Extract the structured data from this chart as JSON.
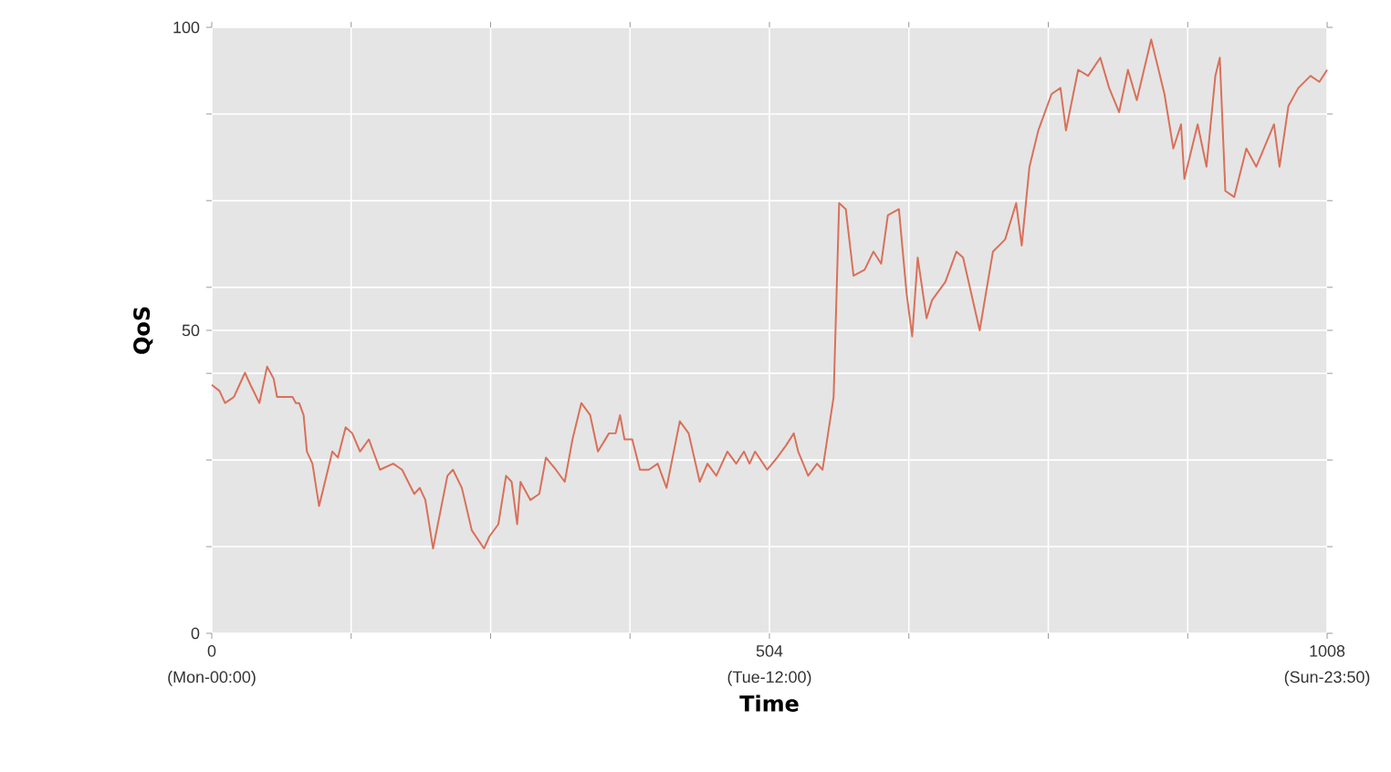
{
  "chart_data": {
    "type": "line",
    "xlabel": "Time",
    "ylabel": "QoS",
    "x": [
      0,
      7,
      12,
      20,
      30,
      35,
      43,
      50,
      56,
      59,
      73,
      76,
      79,
      83,
      86,
      91,
      97,
      109,
      114,
      121,
      127,
      134,
      142,
      152,
      164,
      172,
      183,
      188,
      193,
      200,
      213,
      218,
      226,
      235,
      246,
      251,
      259,
      266,
      271,
      276,
      279,
      288,
      296,
      302,
      311,
      319,
      326,
      334,
      342,
      349,
      359,
      365,
      369,
      373,
      380,
      387,
      395,
      403,
      411,
      423,
      431,
      436,
      441,
      448,
      456,
      466,
      474,
      481,
      486,
      491,
      502,
      511,
      519,
      526,
      530,
      539,
      547,
      552,
      562,
      567,
      573,
      580,
      590,
      598,
      605,
      611,
      621,
      628,
      633,
      638,
      646,
      651,
      663,
      673,
      679,
      684,
      694,
      706,
      717,
      727,
      732,
      739,
      747,
      759,
      767,
      772,
      783,
      792,
      803,
      811,
      820,
      828,
      836,
      849,
      861,
      869,
      876,
      879,
      891,
      899,
      907,
      911,
      916,
      924,
      935,
      944,
      960,
      965,
      973,
      982,
      993,
      1001,
      1008
    ],
    "series": [
      {
        "color": "#d9705a",
        "values": [
          41,
          40,
          38,
          39,
          43,
          41,
          38,
          44,
          42,
          39,
          39,
          38,
          38,
          36,
          30,
          28,
          21,
          30,
          29,
          34,
          33,
          30,
          32,
          27,
          28,
          27,
          23,
          24,
          22,
          14,
          26,
          27,
          24,
          17,
          14,
          16,
          18,
          26,
          25,
          18,
          25,
          22,
          23,
          29,
          27,
          25,
          32,
          38,
          36,
          30,
          33,
          33,
          36,
          32,
          32,
          27,
          27,
          28,
          24,
          35,
          33,
          29,
          25,
          28,
          26,
          30,
          28,
          30,
          28,
          30,
          27,
          29,
          31,
          33,
          30,
          26,
          28,
          27,
          39,
          71,
          70,
          59,
          60,
          63,
          61,
          69,
          70,
          56,
          49,
          62,
          52,
          55,
          58,
          63,
          62,
          58,
          50,
          63,
          65,
          71,
          64,
          77,
          83,
          89,
          90,
          83,
          93,
          92,
          95,
          90,
          86,
          93,
          88,
          98,
          89,
          80,
          84,
          75,
          84,
          77,
          92,
          95,
          73,
          72,
          80,
          77,
          84,
          77,
          87,
          90,
          92,
          91,
          93
        ]
      }
    ],
    "xlim": [
      0,
      1008
    ],
    "ylim": [
      0,
      100
    ],
    "xticks": [
      0,
      {
        "value": 126,
        "label": null
      },
      {
        "value": 252,
        "label": null
      },
      {
        "value": 378,
        "label": null
      },
      504,
      {
        "value": 630,
        "label": null
      },
      {
        "value": 756,
        "label": null
      },
      {
        "value": 882,
        "label": null
      },
      1008
    ],
    "annotations": [
      "(Mon-00:00)",
      "(Tue-12:00)",
      "(Sun-23:50)"
    ],
    "yticks": [
      0,
      {
        "value": 14.3,
        "label": null
      },
      {
        "value": 28.6,
        "label": null
      },
      {
        "value": 42.9,
        "label": null
      },
      50,
      {
        "value": 57.1,
        "label": null
      },
      {
        "value": 71.4,
        "label": null
      },
      {
        "value": 85.7,
        "label": null
      },
      100
    ],
    "grid": true,
    "marker": "none",
    "line_style": "solid"
  }
}
